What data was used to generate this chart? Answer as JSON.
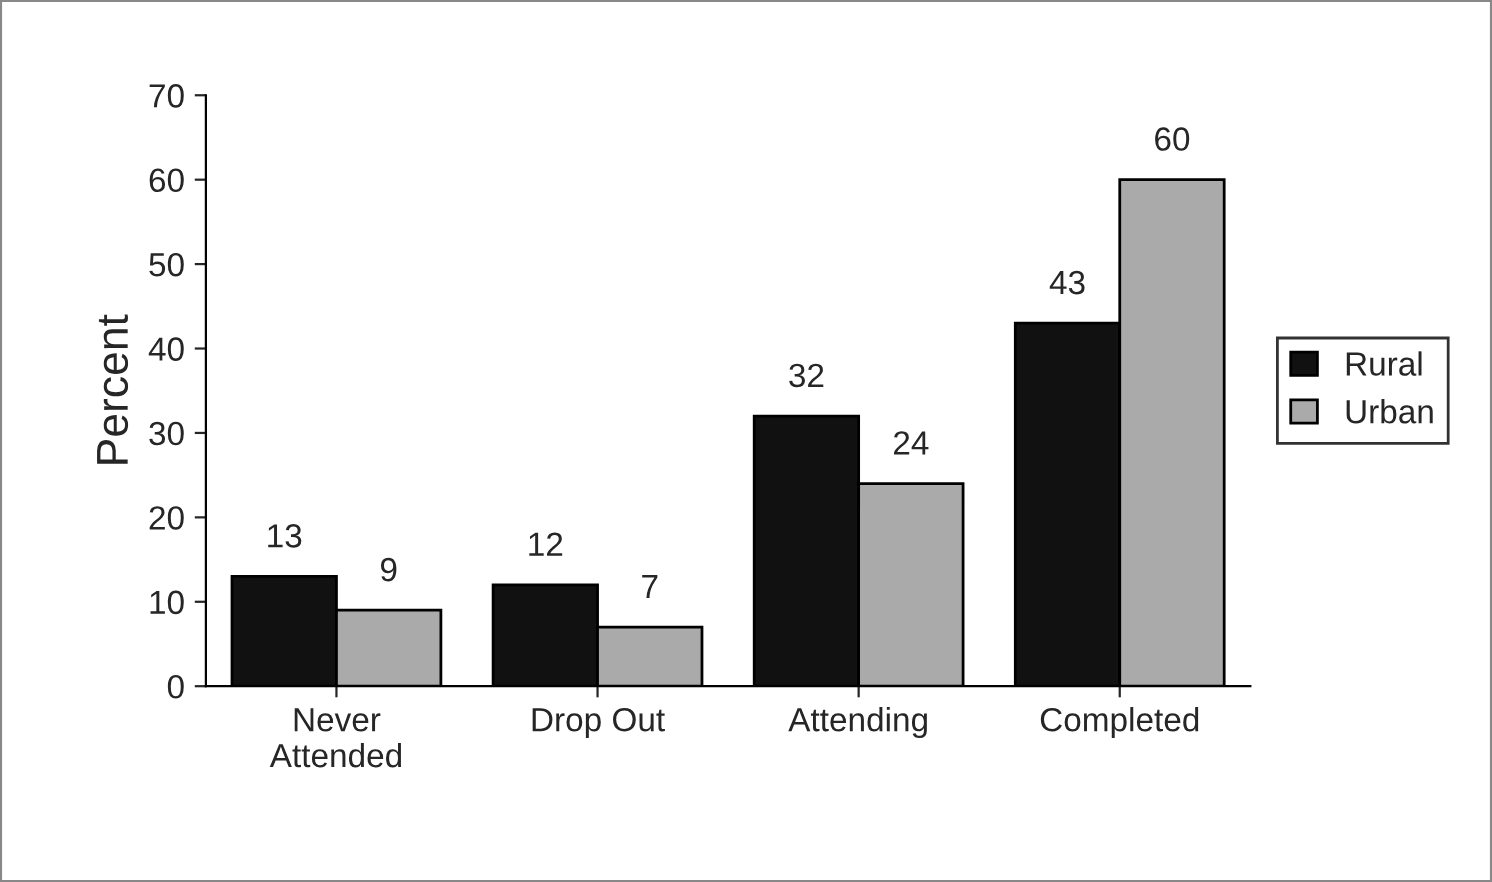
{
  "chart_data": {
    "type": "bar",
    "ylabel": "Percent",
    "categories": [
      "Never\nAttended",
      "Drop Out",
      "Attending",
      "Completed"
    ],
    "series": [
      {
        "name": "Rural",
        "color": "#111111",
        "values": [
          13,
          12,
          32,
          43
        ]
      },
      {
        "name": "Urban",
        "color": "#aaaaaa",
        "values": [
          9,
          7,
          24,
          60
        ]
      }
    ],
    "ylim": [
      0,
      70
    ],
    "yticks": [
      0,
      10,
      20,
      30,
      40,
      50,
      60,
      70
    ],
    "grid": false,
    "legend": "right",
    "data_labels": true
  }
}
